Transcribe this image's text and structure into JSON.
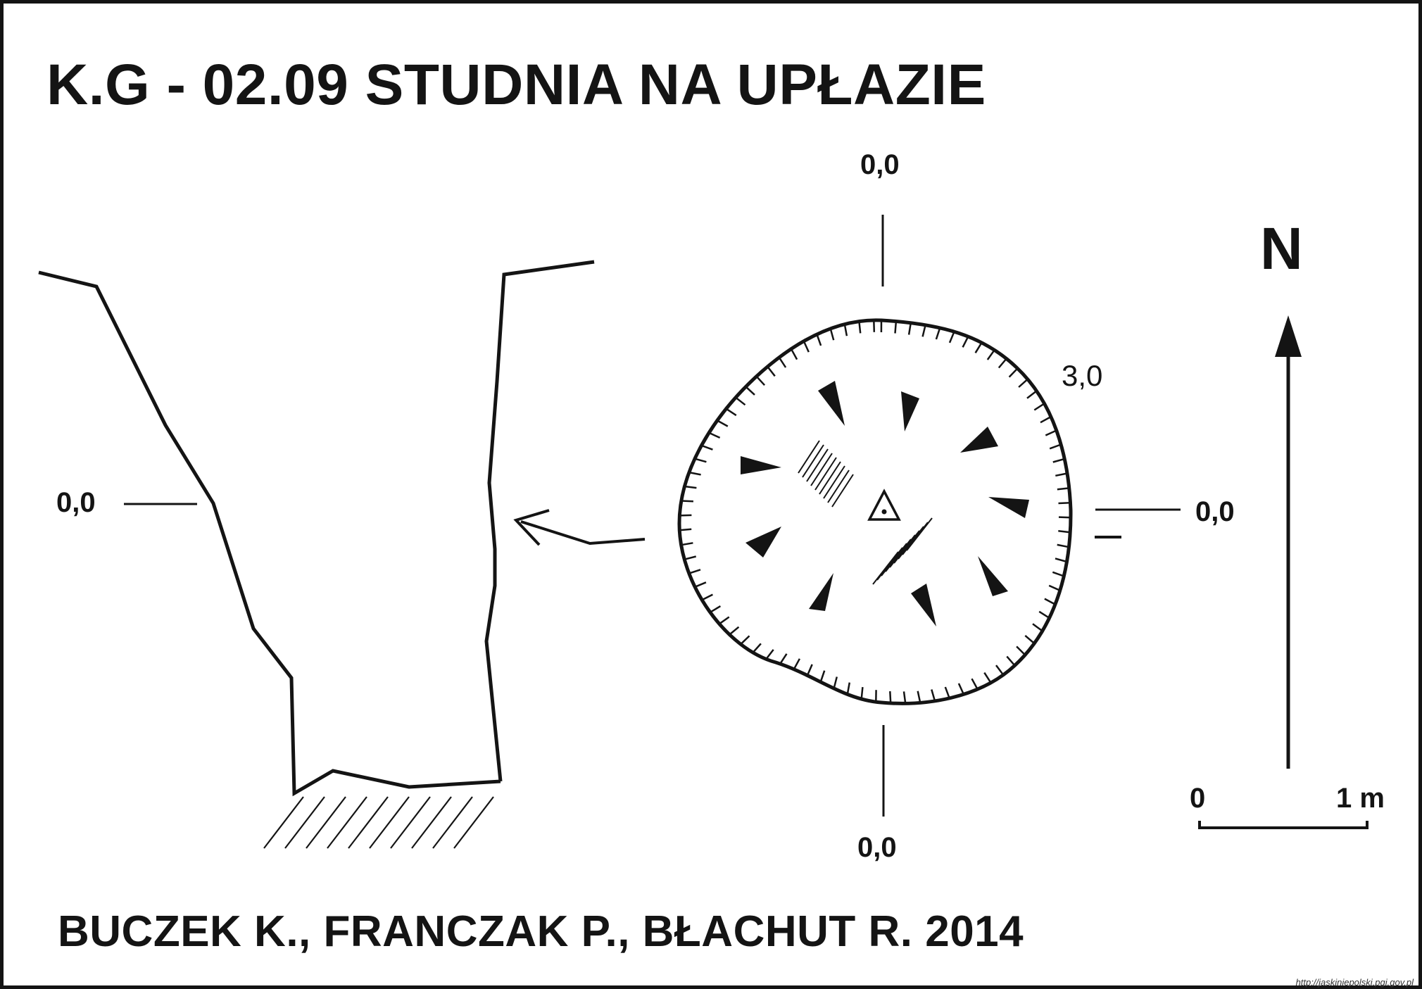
{
  "title": "K.G - 02.09  STUDNIA NA UPŁAZIE",
  "authors": "BUCZEK K., FRANCZAK P., BŁACHUT R. 2014",
  "north_label": "N",
  "plan_labels": {
    "top": "0,0",
    "bottom": "0,0",
    "right": "0,0",
    "depth": "3,0"
  },
  "section_labels": {
    "left": "0,0"
  },
  "scale": {
    "start": "0",
    "end": "1 m"
  },
  "source_url": "http://jaskiniepolski.pgi.gov.pl",
  "colors": {
    "ink": "#141414",
    "background": "#ffffff"
  }
}
